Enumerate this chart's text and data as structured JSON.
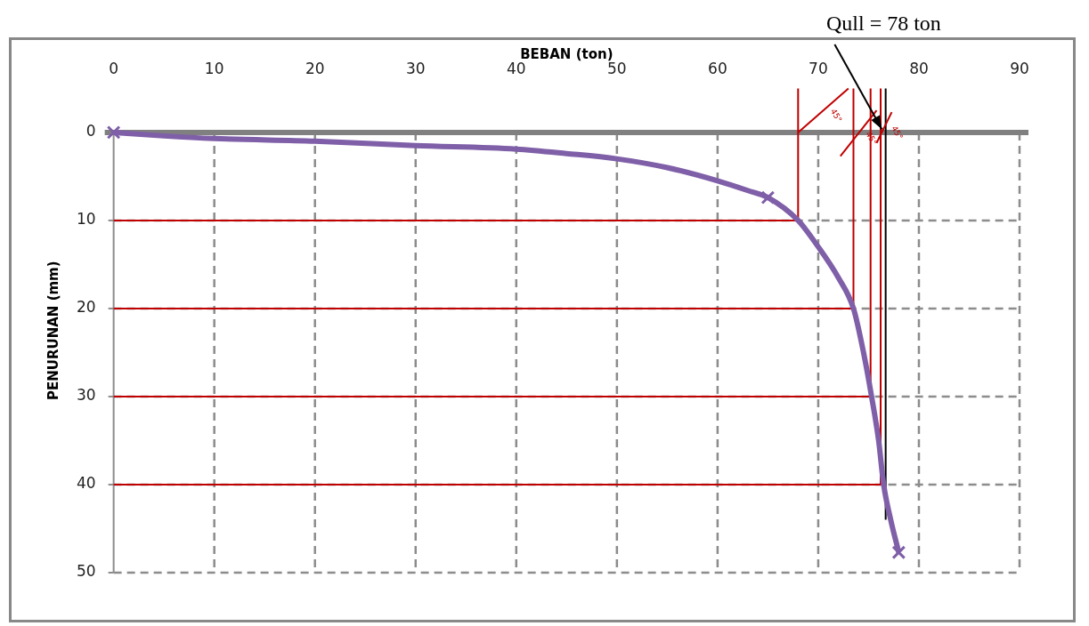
{
  "chart_data": {
    "type": "line",
    "xlabel": "BEBAN (ton)",
    "ylabel": "PENURUNAN (mm)",
    "xlim": [
      0,
      90
    ],
    "xticks": [
      0,
      10,
      20,
      30,
      40,
      50,
      60,
      70,
      80,
      90
    ],
    "ylim": [
      50,
      -5
    ],
    "yticks": [
      0,
      10,
      20,
      30,
      40,
      50
    ],
    "grid": true,
    "legend": false,
    "series": [
      {
        "color": "#7f5fa8",
        "marker": "none",
        "x": [
          0,
          5,
          10,
          20,
          30,
          40,
          45,
          50,
          55,
          60,
          63,
          65,
          68,
          70,
          72,
          73.5,
          74.5,
          75.3,
          76,
          76.5,
          77.2,
          78
        ],
        "values": [
          0,
          0.4,
          0.7,
          1.0,
          1.5,
          1.9,
          2.4,
          3.0,
          4.0,
          5.5,
          6.6,
          7.4,
          10,
          13,
          16.5,
          20,
          25,
          30,
          35,
          40,
          44,
          47.7
        ]
      },
      {
        "type": "scatter",
        "color": "#7f5fa8",
        "marker": "cross",
        "x": [
          0,
          65,
          78
        ],
        "values": [
          0,
          7.4,
          47.7
        ]
      },
      {
        "color": "#c00000",
        "marker": "none",
        "x": [
          0,
          68,
          68
        ],
        "values": [
          10,
          10,
          -5
        ]
      },
      {
        "color": "#c00000",
        "marker": "none",
        "x": [
          0,
          73.5,
          73.5
        ],
        "values": [
          20,
          20,
          -5
        ]
      },
      {
        "color": "#c00000",
        "marker": "none",
        "x": [
          0,
          75.2,
          75.2
        ],
        "values": [
          30,
          30,
          -5
        ]
      },
      {
        "color": "#c00000",
        "marker": "none",
        "x": [
          0,
          76.2,
          76.2
        ],
        "values": [
          40,
          40,
          -5
        ]
      },
      {
        "color": "#c00000",
        "marker": "none",
        "x": [
          68,
          73
        ],
        "values": [
          0,
          -5
        ]
      },
      {
        "color": "#c00000",
        "marker": "none",
        "x": [
          72.2,
          75.8
        ],
        "values": [
          2.7,
          -2.5
        ]
      },
      {
        "color": "#c00000",
        "marker": "none",
        "x": [
          75.8,
          77.3
        ],
        "values": [
          1.2,
          -2.3
        ]
      },
      {
        "color": "#000000",
        "marker": "none",
        "x": [
          76.7,
          76.7
        ],
        "values": [
          44,
          -5
        ]
      }
    ],
    "ref_lines": [
      {
        "axis": "y",
        "value": 0,
        "color": "#808080"
      }
    ],
    "annotations": [
      {
        "text": "Qull = 78 ton",
        "x": 76.5,
        "y": 0
      },
      "45°",
      "45°",
      "45°"
    ]
  }
}
